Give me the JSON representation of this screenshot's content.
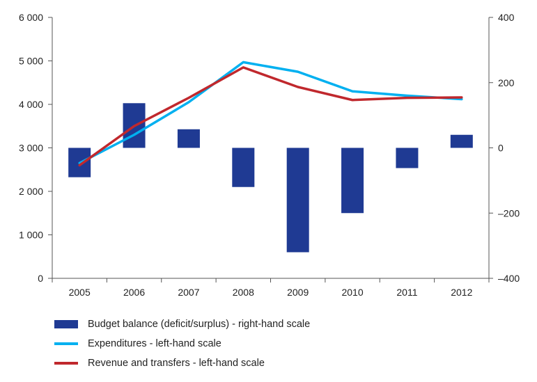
{
  "chart_data": {
    "type": "bar+line",
    "categories": [
      "2005",
      "2006",
      "2007",
      "2008",
      "2009",
      "2010",
      "2011",
      "2012"
    ],
    "left_axis": {
      "ylim": [
        0,
        6000
      ],
      "ticks": [
        0,
        1000,
        2000,
        3000,
        4000,
        5000,
        6000
      ],
      "tick_labels": [
        "0",
        "1 000",
        "2 000",
        "3 000",
        "4 000",
        "5 000",
        "6 000"
      ]
    },
    "right_axis": {
      "ylim": [
        -400,
        400
      ],
      "ticks": [
        -400,
        -200,
        0,
        200,
        400
      ],
      "tick_labels": [
        "–400",
        "–200",
        "0",
        "200",
        "400"
      ]
    },
    "series": [
      {
        "name": "Budget balance (deficit/surplus) - right-hand scale",
        "type": "bar",
        "axis": "right",
        "color": "#1f3a93",
        "values": [
          -90,
          137,
          57,
          -120,
          -320,
          -200,
          -62,
          40
        ]
      },
      {
        "name": "Expenditures - left-hand scale",
        "type": "line",
        "axis": "left",
        "color": "#00b0f0",
        "values": [
          2650,
          3300,
          4050,
          4970,
          4750,
          4300,
          4200,
          4120
        ]
      },
      {
        "name": "Revenue and transfers - left-hand scale",
        "type": "line",
        "axis": "left",
        "color": "#c0282d",
        "values": [
          2600,
          3500,
          4150,
          4850,
          4400,
          4100,
          4150,
          4160
        ]
      }
    ],
    "grid": false,
    "legend_position": "bottom"
  }
}
